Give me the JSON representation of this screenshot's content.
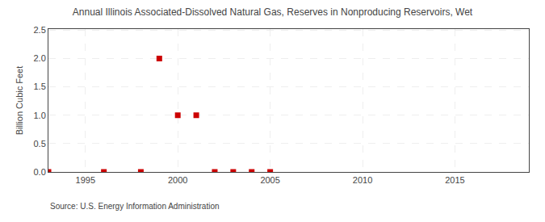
{
  "chart_data": {
    "type": "scatter",
    "title": "Annual Illinois Associated-Dissolved Natural Gas, Reserves in Nonproducing Reservoirs, Wet",
    "ylabel": "Billion Cubic Feet",
    "annotations": [
      "Source: U.S. Energy Information Administration"
    ],
    "x": [
      1993,
      1996,
      1998,
      1999,
      2000,
      2001,
      2002,
      2003,
      2004,
      2005
    ],
    "values": [
      0.0,
      0.0,
      0.0,
      2.0,
      1.0,
      1.0,
      0.0,
      0.0,
      0.0,
      0.0
    ],
    "color": "#cc0000",
    "marker": "square",
    "xlim": [
      1993,
      2019
    ],
    "xticks": [
      1995,
      2000,
      2005,
      2010,
      2015
    ],
    "ylim": [
      0,
      2.52
    ],
    "yticks": [
      {
        "value": 0.0,
        "label": "0.0"
      },
      0.5,
      {
        "value": 1.0,
        "label": "1.0"
      },
      1.5,
      {
        "value": 2.0,
        "label": "2.0"
      },
      2.5
    ],
    "grid": true
  }
}
